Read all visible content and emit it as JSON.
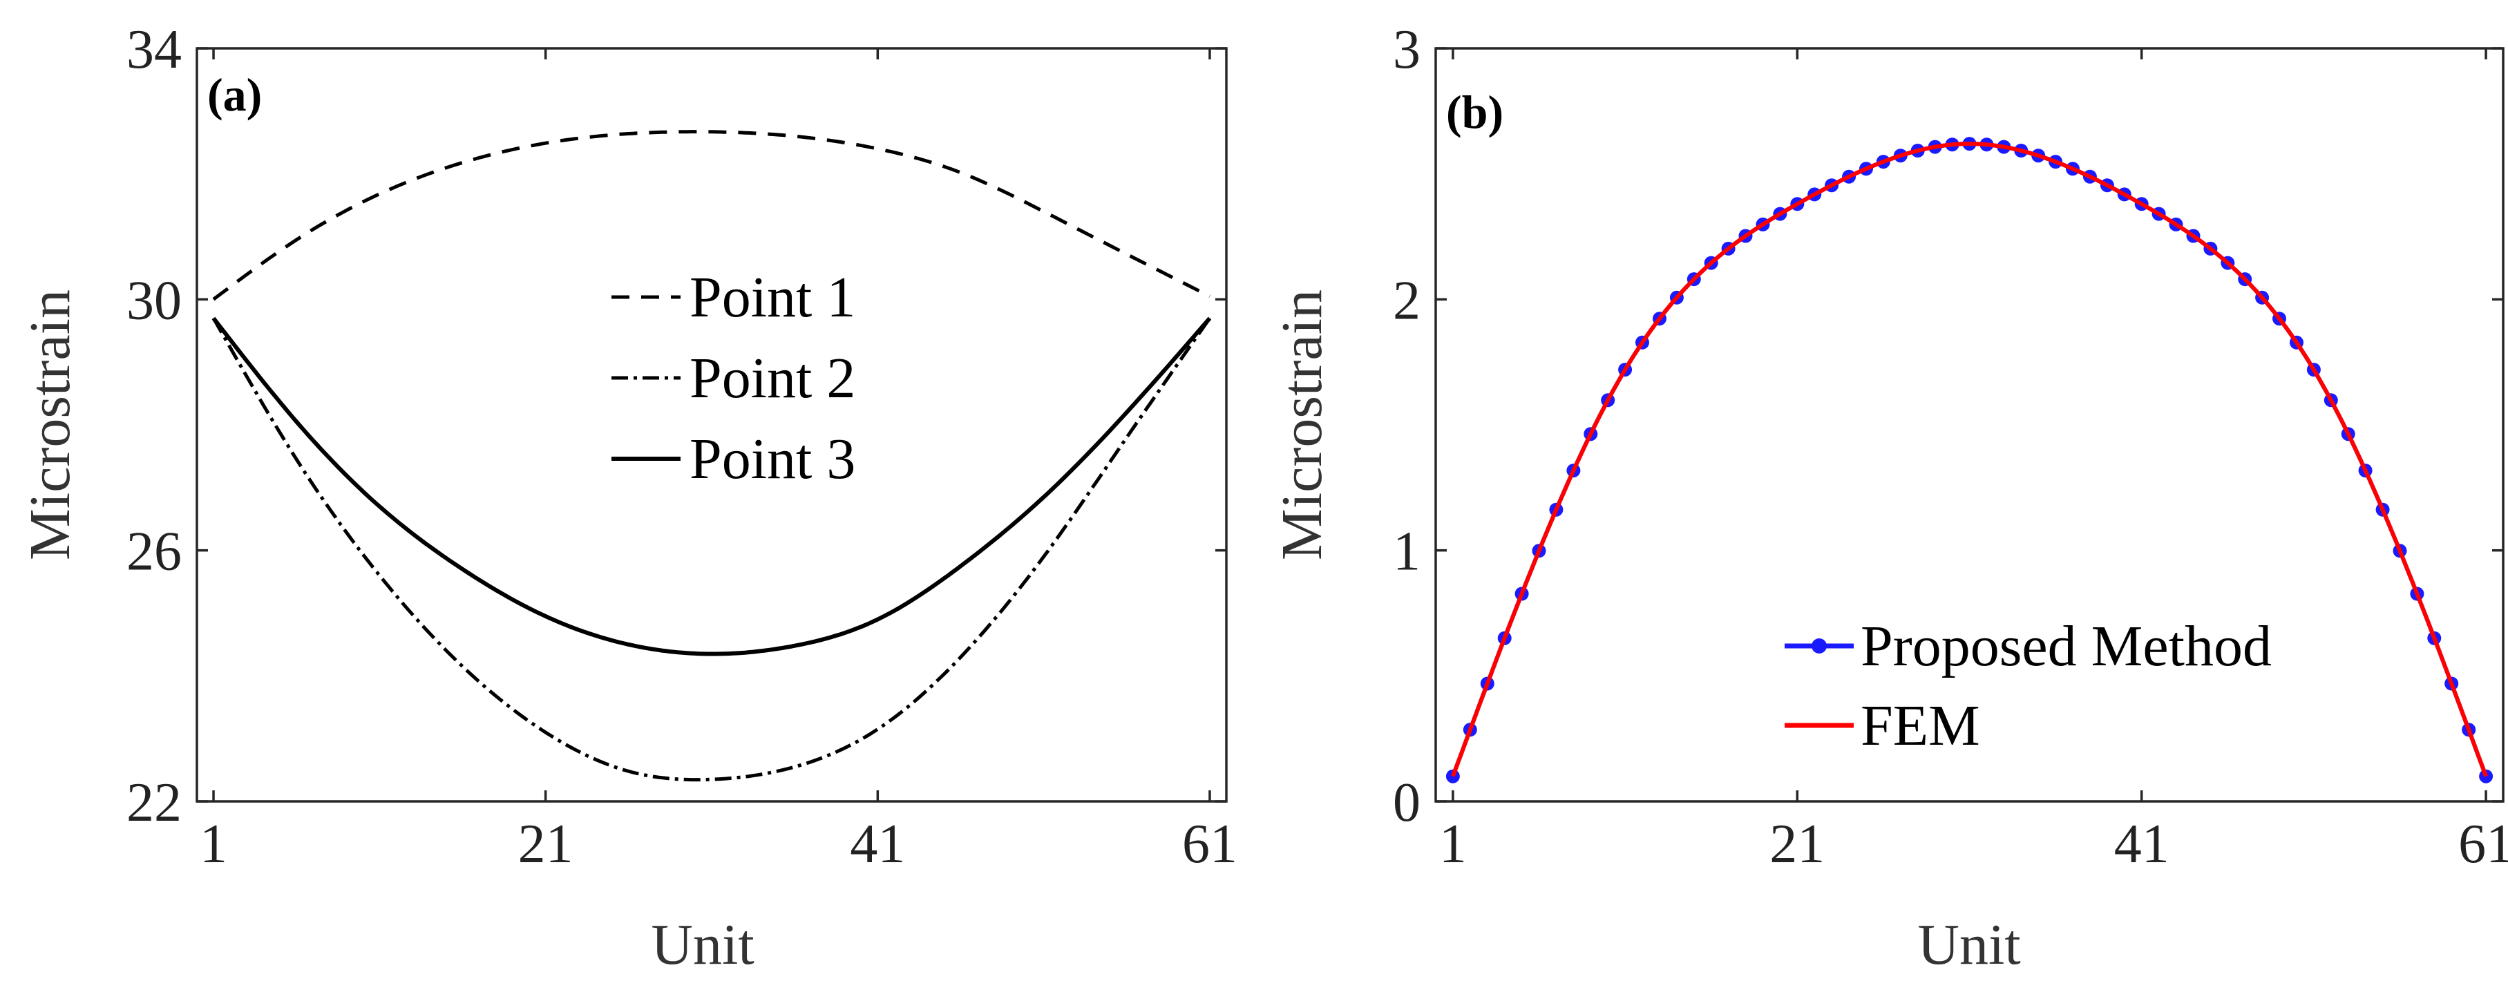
{
  "chart_data": [
    {
      "type": "line",
      "panel_label": "(a)",
      "xlabel": "Unit",
      "ylabel": "Microstrain",
      "xlim": [
        0,
        62
      ],
      "ylim": [
        22,
        34
      ],
      "xticks": [
        1,
        21,
        41,
        61
      ],
      "yticks": [
        22,
        26,
        30,
        34
      ],
      "legend_location": "center",
      "series": [
        {
          "name": "Point 1",
          "style": "dashed",
          "color": "#000000",
          "x": [
            1,
            6,
            11,
            16,
            21,
            26,
            31,
            36,
            41,
            46,
            51,
            56,
            61
          ],
          "y": [
            30.0,
            30.95,
            31.68,
            32.18,
            32.49,
            32.64,
            32.67,
            32.6,
            32.4,
            32.02,
            31.4,
            30.72,
            30.05
          ]
        },
        {
          "name": "Point 2",
          "style": "dashdot",
          "color": "#000000",
          "x": [
            1,
            6,
            11,
            16,
            21,
            26,
            31,
            36,
            41,
            46,
            51,
            56,
            61
          ],
          "y": [
            29.7,
            27.45,
            25.6,
            24.15,
            23.1,
            22.48,
            22.35,
            22.55,
            23.15,
            24.3,
            25.9,
            27.8,
            29.7
          ]
        },
        {
          "name": "Point 3",
          "style": "solid",
          "color": "#000000",
          "x": [
            1,
            6,
            11,
            16,
            21,
            26,
            31,
            36,
            41,
            46,
            51,
            56,
            61
          ],
          "y": [
            29.7,
            28.05,
            26.7,
            25.7,
            24.95,
            24.5,
            24.35,
            24.48,
            24.9,
            25.75,
            26.85,
            28.2,
            29.7
          ]
        }
      ]
    },
    {
      "type": "line",
      "panel_label": "(b)",
      "xlabel": "Unit",
      "ylabel": "Microstrain",
      "xlim": [
        0,
        62
      ],
      "ylim": [
        0,
        3
      ],
      "xticks": [
        1,
        21,
        41,
        61
      ],
      "yticks": [
        0,
        1,
        2,
        3
      ],
      "legend_location": "bottom-right",
      "series": [
        {
          "name": "Proposed Method",
          "style": "solid-markers",
          "color": "#1a1aff",
          "x": [
            1,
            11,
            21,
            31,
            41,
            51,
            61
          ],
          "y": [
            0.1,
            1.72,
            2.38,
            2.62,
            2.38,
            1.72,
            0.1
          ]
        },
        {
          "name": "FEM",
          "style": "solid",
          "color": "#ff0000",
          "x": [
            1,
            11,
            21,
            31,
            41,
            51,
            61
          ],
          "y": [
            0.1,
            1.72,
            2.38,
            2.62,
            2.38,
            1.72,
            0.1
          ]
        }
      ]
    }
  ]
}
